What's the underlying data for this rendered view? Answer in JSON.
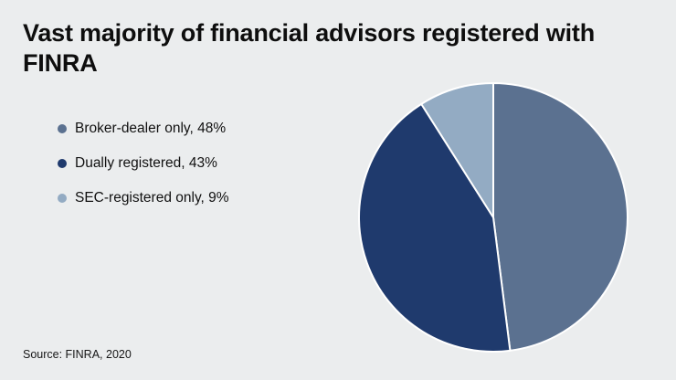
{
  "title": "Vast majority of financial advisors registered with FINRA",
  "source": "Source: FINRA, 2020",
  "background_color": "#ebedee",
  "chart_data": {
    "type": "pie",
    "title": "Vast majority of financial advisors registered with FINRA",
    "slices": [
      {
        "label": "Broker-dealer only",
        "value": 48,
        "color": "#5b7190"
      },
      {
        "label": "Dually registered",
        "value": 43,
        "color": "#1f3a6d"
      },
      {
        "label": "SEC-registered only",
        "value": 9,
        "color": "#93abc3"
      }
    ],
    "start_angle": "top",
    "direction": "clockwise",
    "legend_position": "left",
    "legend_format": "{label}, {value}%",
    "separator_color": "#ffffff",
    "source": "Source: FINRA, 2020"
  }
}
